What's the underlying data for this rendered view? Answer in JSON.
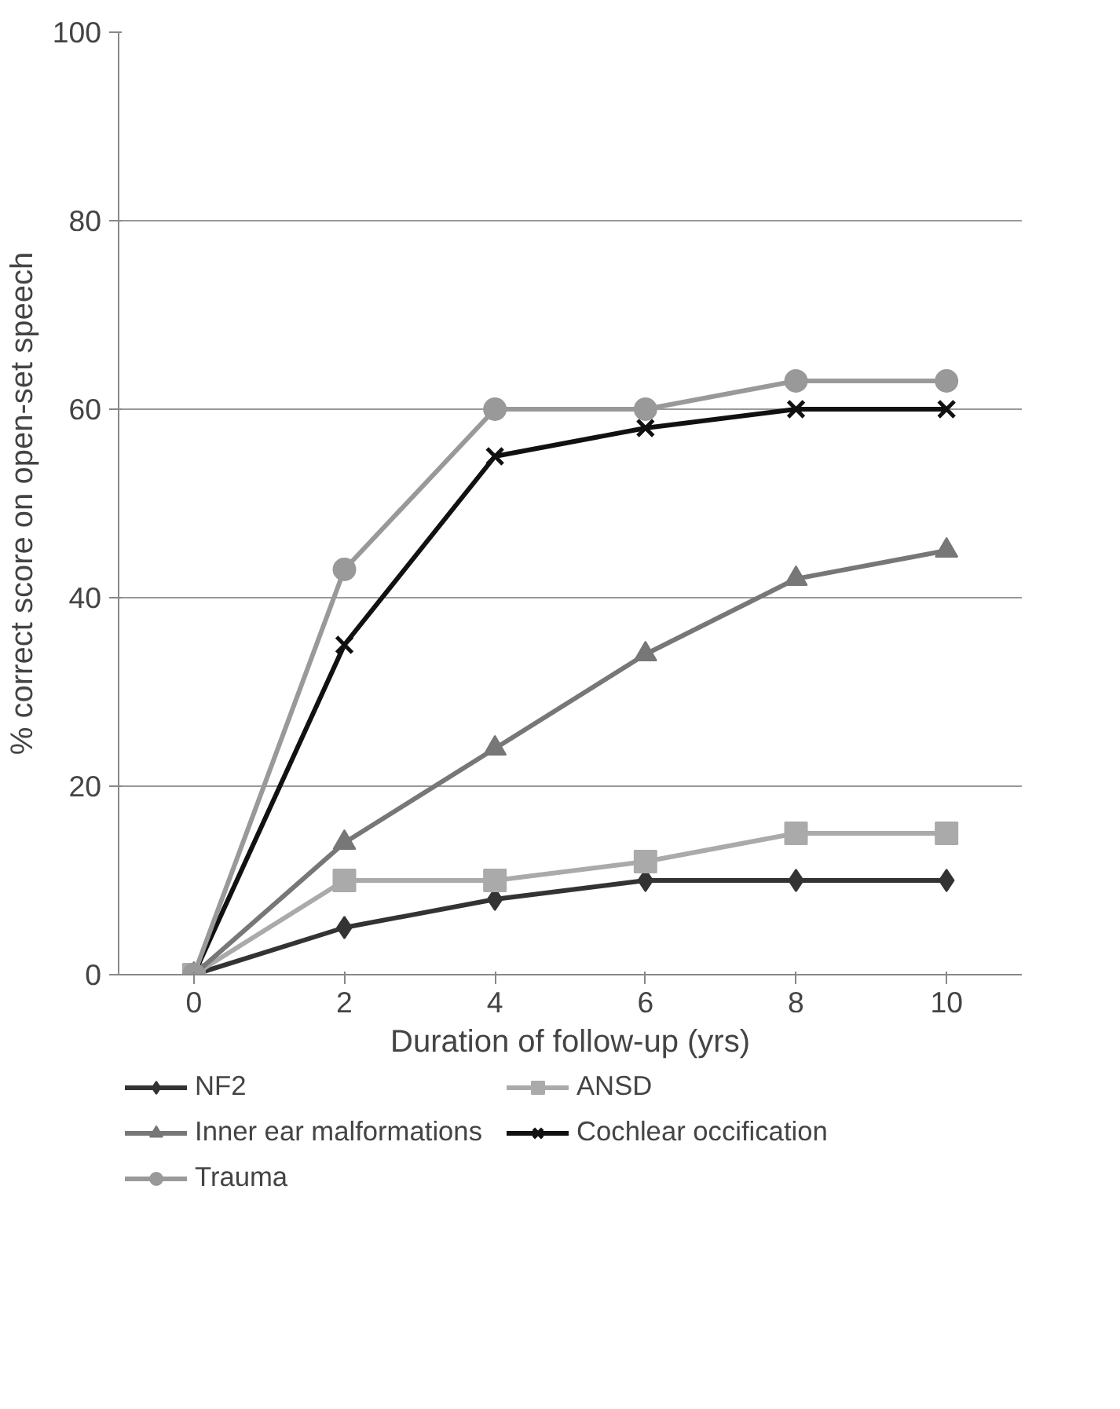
{
  "chart_data": {
    "type": "line",
    "xlabel": "Duration of follow-up (yrs)",
    "ylabel": "% correct score on open-set speech",
    "categories": [
      "0",
      "2",
      "4",
      "6",
      "8",
      "10"
    ],
    "ylim": [
      0,
      100
    ],
    "yticks": [
      0,
      20,
      40,
      60,
      80,
      100
    ],
    "grid": "y",
    "legend": "bottom",
    "line_style": "solid",
    "series": [
      {
        "name": "NF2",
        "color": "#333333",
        "marker": "diamond",
        "values": [
          0,
          5,
          8,
          10,
          10,
          10
        ]
      },
      {
        "name": "ANSD",
        "color": "#aaaaaa",
        "marker": "square",
        "values": [
          0,
          10,
          10,
          12,
          15,
          15
        ]
      },
      {
        "name": "Inner ear malformations",
        "color": "#777777",
        "marker": "triangle",
        "values": [
          0,
          14,
          24,
          34,
          42,
          45
        ]
      },
      {
        "name": "Cochlear occification",
        "color": "#111111",
        "marker": "cross",
        "values": [
          0,
          35,
          55,
          58,
          60,
          60
        ]
      },
      {
        "name": "Trauma",
        "color": "#999999",
        "marker": "circle",
        "values": [
          0,
          43,
          60,
          60,
          63,
          63
        ]
      }
    ]
  }
}
